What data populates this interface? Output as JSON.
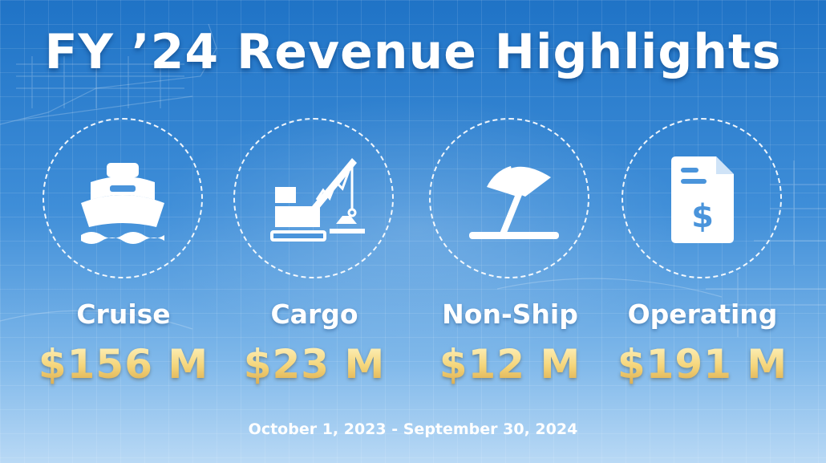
{
  "title": "FY ’24 Revenue Highlights",
  "items": [
    {
      "label": "Cruise",
      "value": "$156 M",
      "icon": "cruise-ship-icon"
    },
    {
      "label": "Cargo",
      "value": "$23 M",
      "icon": "crane-icon"
    },
    {
      "label": "Non-Ship",
      "value": "$12 M",
      "icon": "beach-umbrella-icon"
    },
    {
      "label": "Operating",
      "value": "$191 M",
      "icon": "invoice-dollar-icon"
    }
  ],
  "period": "October 1, 2023 - September 30, 2024",
  "colors": {
    "background": "#2f82d0",
    "value_gold": "#f4d478",
    "text": "#ffffff"
  }
}
